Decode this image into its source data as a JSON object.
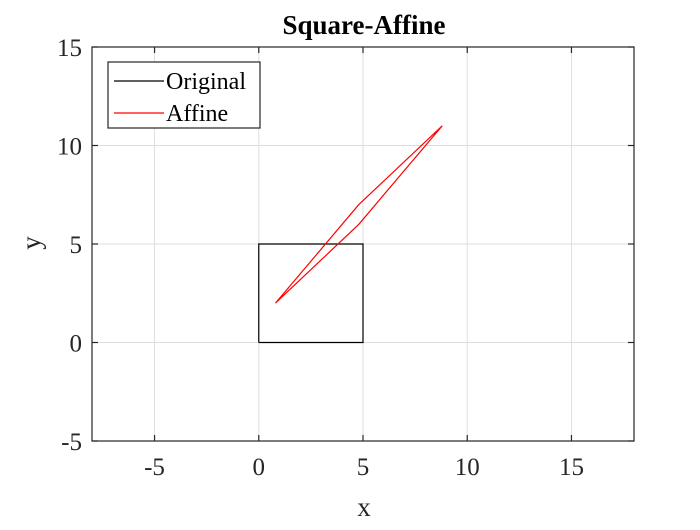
{
  "chart_data": {
    "type": "line",
    "title": "Square-Affine",
    "xlabel": "x",
    "ylabel": "y",
    "xlim": [
      -8,
      18
    ],
    "ylim": [
      -5,
      15
    ],
    "xticks": [
      -5,
      0,
      5,
      10,
      15
    ],
    "yticks": [
      -5,
      0,
      5,
      10,
      15
    ],
    "xtick_labels": [
      "-5",
      "0",
      "5",
      "10",
      "15"
    ],
    "ytick_labels": [
      "-5",
      "0",
      "5",
      "10",
      "15"
    ],
    "grid": true,
    "legend_position": "top-left",
    "series": [
      {
        "name": "Original",
        "color": "#000000",
        "x": [
          0,
          5,
          5,
          0,
          0
        ],
        "y": [
          0,
          0,
          5,
          5,
          0
        ]
      },
      {
        "name": "Affine",
        "color": "#ff0000",
        "x": [
          0.8,
          4.8,
          8.8,
          4.8,
          0.8
        ],
        "y": [
          2,
          6,
          11,
          7,
          2
        ]
      }
    ]
  }
}
